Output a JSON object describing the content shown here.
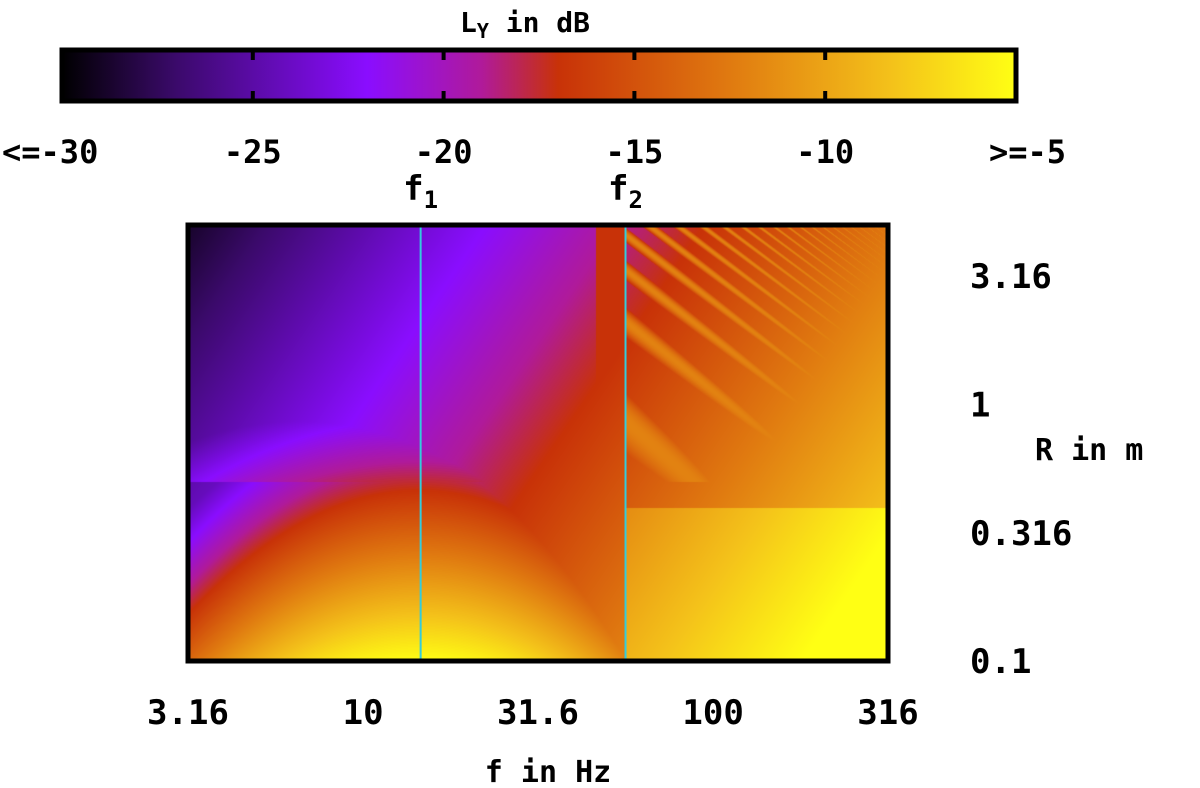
{
  "chart_data": {
    "type": "heatmap",
    "title": "",
    "colorbar": {
      "title_main": "L",
      "title_sub": "Y",
      "title_rest": " in dB",
      "range": [
        -30,
        -5
      ],
      "ticks": [
        -25,
        -20,
        -15,
        -10
      ],
      "tick_labels": [
        "<=-30",
        "-25",
        "-20",
        "-15",
        "-10",
        ">=-5"
      ],
      "label_values": [
        -30,
        -25,
        -20,
        -15,
        -10,
        -5
      ],
      "colormap": [
        "#000000",
        "#3b0a6b",
        "#8a0dff",
        "#b01a9a",
        "#c83208",
        "#e07a10",
        "#f4c21a",
        "#ffff14"
      ]
    },
    "xlabel": "f in Hz",
    "ylabel": "R in m",
    "x_scale": "log",
    "y_scale": "log",
    "xlim": [
      3.16,
      316
    ],
    "ylim": [
      0.1,
      5.0
    ],
    "x_ticks": [
      3.16,
      10,
      31.6,
      100,
      316
    ],
    "x_tick_labels": [
      "3.16",
      "10",
      "31.6",
      "100",
      "316"
    ],
    "y_ticks": [
      0.1,
      0.316,
      1,
      3.16
    ],
    "y_tick_labels": [
      "0.1",
      "0.316",
      "1",
      "3.16"
    ],
    "markers": [
      {
        "label": "f",
        "sub": "1",
        "x": 14.6,
        "color": "#33ccdd"
      },
      {
        "label": "f",
        "sub": "2",
        "x": 56.2,
        "color": "#33ccdd"
      }
    ]
  }
}
